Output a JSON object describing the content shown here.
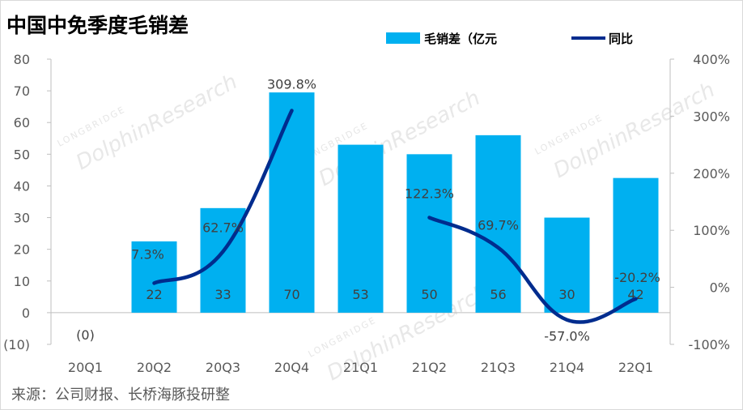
{
  "title": "中国中免季度毛销差",
  "source": "来源：公司财报、长桥海豚投研整",
  "watermark": {
    "brand": "DolphinResearch",
    "sub": "LONGBRIDGE"
  },
  "colors": {
    "bar": "#00b0f0",
    "line": "#002c8e"
  },
  "chart_data": {
    "type": "bar",
    "categories": [
      "20Q1",
      "20Q2",
      "20Q3",
      "20Q4",
      "21Q1",
      "21Q2",
      "21Q3",
      "21Q4",
      "22Q1"
    ],
    "series": [
      {
        "name": "毛销差（亿元",
        "type": "bar",
        "axis": "left",
        "values": [
          0,
          22.5,
          33,
          69.5,
          53,
          50,
          56,
          30,
          42.5
        ],
        "labels": [
          "(0)",
          "22",
          "33",
          "70",
          "53",
          "50",
          "56",
          "30",
          "42"
        ]
      },
      {
        "name": "同比",
        "type": "line",
        "axis": "right",
        "values": [
          null,
          7.3,
          62.7,
          309.8,
          null,
          122.3,
          69.7,
          -57.0,
          -20.2
        ],
        "labels": [
          null,
          "7.3%",
          "62.7%",
          "309.8%",
          null,
          "122.3%",
          "69.7%",
          "-57.0%",
          "-20.2%"
        ]
      }
    ],
    "y_left": {
      "min": -10,
      "max": 80,
      "step": 10,
      "tick_labels": [
        "(10)",
        "0",
        "10",
        "20",
        "30",
        "40",
        "50",
        "60",
        "70",
        "80"
      ]
    },
    "y_right": {
      "min": -100,
      "max": 400,
      "step": 100,
      "tick_labels": [
        "-100%",
        "0%",
        "100%",
        "200%",
        "300%",
        "400%"
      ]
    },
    "legend_position": "top-right",
    "grid": false
  }
}
